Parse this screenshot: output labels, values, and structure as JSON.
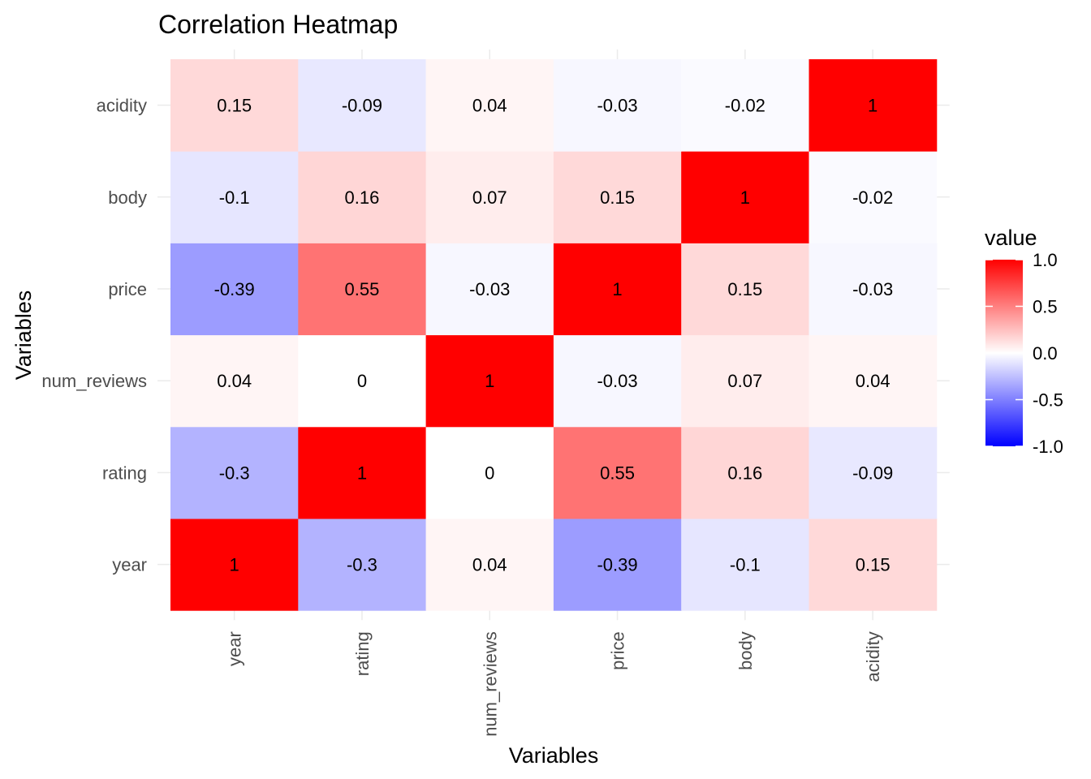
{
  "chart_data": {
    "type": "heatmap",
    "title": "Correlation Heatmap",
    "xlabel": "Variables",
    "ylabel": "Variables",
    "x_categories": [
      "year",
      "rating",
      "num_reviews",
      "price",
      "body",
      "acidity"
    ],
    "y_categories": [
      "year",
      "rating",
      "num_reviews",
      "price",
      "body",
      "acidity"
    ],
    "values": [
      [
        1,
        -0.3,
        0.04,
        -0.39,
        -0.1,
        0.15
      ],
      [
        -0.3,
        1,
        0,
        0.55,
        0.16,
        -0.09
      ],
      [
        0.04,
        0,
        1,
        -0.03,
        0.07,
        0.04
      ],
      [
        -0.39,
        0.55,
        -0.03,
        1,
        0.15,
        -0.03
      ],
      [
        -0.1,
        0.16,
        0.07,
        0.15,
        1,
        -0.02
      ],
      [
        0.15,
        -0.09,
        0.04,
        -0.03,
        -0.02,
        1
      ]
    ],
    "value_labels": [
      [
        "1",
        "-0.3",
        "0.04",
        "-0.39",
        "-0.1",
        "0.15"
      ],
      [
        "-0.3",
        "1",
        "0",
        "0.55",
        "0.16",
        "-0.09"
      ],
      [
        "0.04",
        "0",
        "1",
        "-0.03",
        "0.07",
        "0.04"
      ],
      [
        "-0.39",
        "0.55",
        "-0.03",
        "1",
        "0.15",
        "-0.03"
      ],
      [
        "-0.1",
        "0.16",
        "0.07",
        "0.15",
        "1",
        "-0.02"
      ],
      [
        "0.15",
        "-0.09",
        "0.04",
        "-0.03",
        "-0.02",
        "1"
      ]
    ],
    "color_scale": {
      "low": "#0000ff",
      "mid": "#ffffff",
      "high": "#ff0000",
      "limits": [
        -1,
        1
      ]
    },
    "legend": {
      "title": "value",
      "breaks": [
        1.0,
        0.5,
        0.0,
        -0.5,
        -1.0
      ],
      "labels": [
        "1.0",
        "0.5",
        "0.0",
        "-0.5",
        "-1.0"
      ],
      "position": "right"
    },
    "grid": true
  }
}
